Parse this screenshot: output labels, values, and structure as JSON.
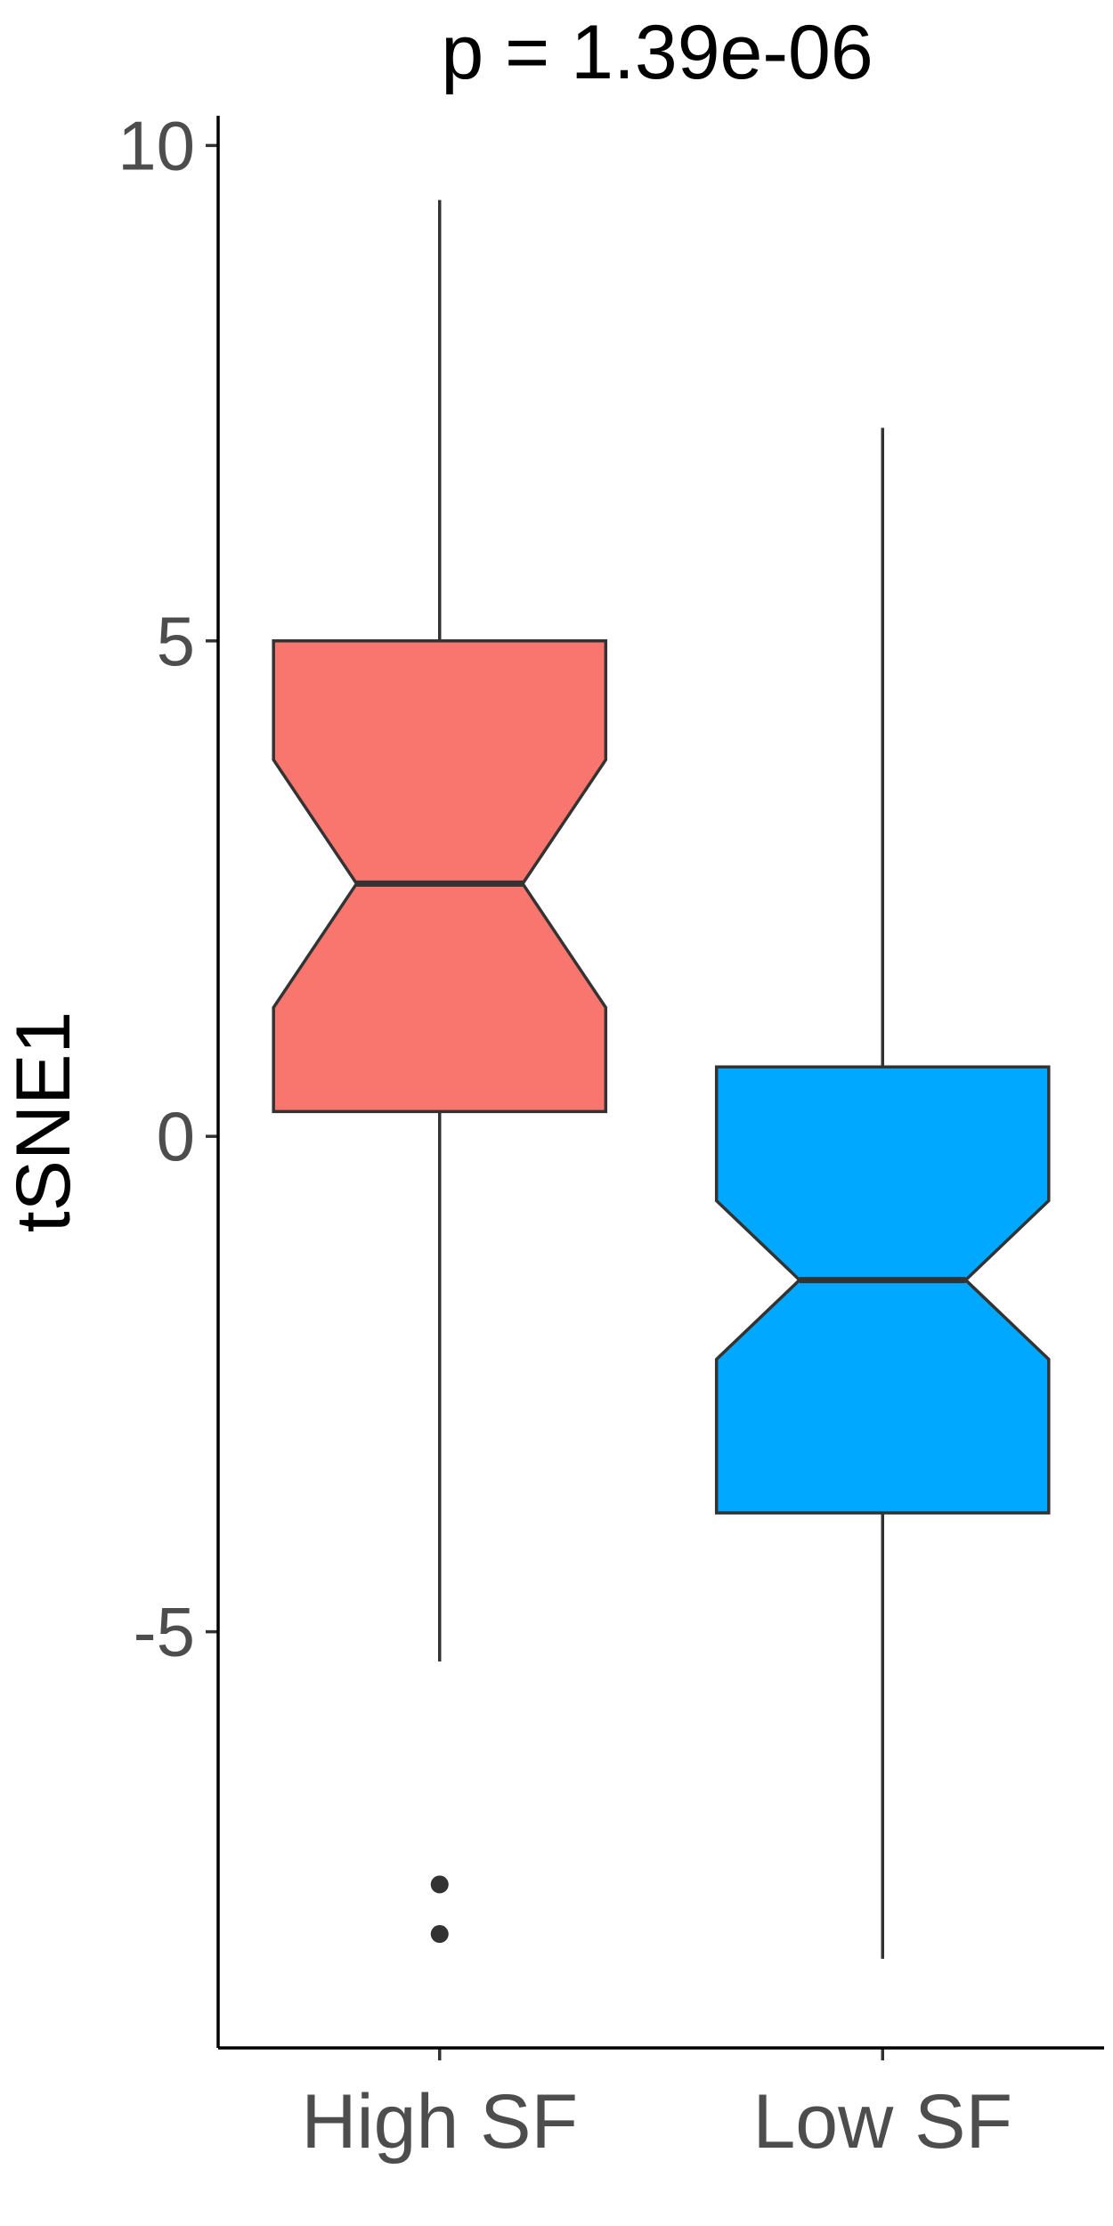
{
  "chart_data": {
    "type": "boxplot",
    "title": "p = 1.39e-06",
    "xlabel": "",
    "ylabel": "tSNE1",
    "ylim": [
      -9.2,
      10.3
    ],
    "yticks": [
      -5,
      0,
      5,
      10
    ],
    "ytick_labels": [
      "-5",
      "0",
      "5",
      "10"
    ],
    "notched": true,
    "grid": false,
    "categories": [
      "High SF",
      "Low SF"
    ],
    "boxes": [
      {
        "category": "High SF",
        "color": "#F8766D",
        "whisker_low": -5.3,
        "q1": 0.25,
        "median": 2.55,
        "q3": 5.0,
        "whisker_high": 9.45,
        "notch_low": 1.3,
        "notch_high": 3.8,
        "outliers": [
          -7.55,
          -8.05
        ]
      },
      {
        "category": "Low SF",
        "color": "#00A9FF",
        "whisker_low": -8.3,
        "q1": -3.8,
        "median": -1.45,
        "q3": 0.7,
        "whisker_high": 7.15,
        "notch_low": -2.25,
        "notch_high": -0.65,
        "outliers": []
      }
    ]
  }
}
